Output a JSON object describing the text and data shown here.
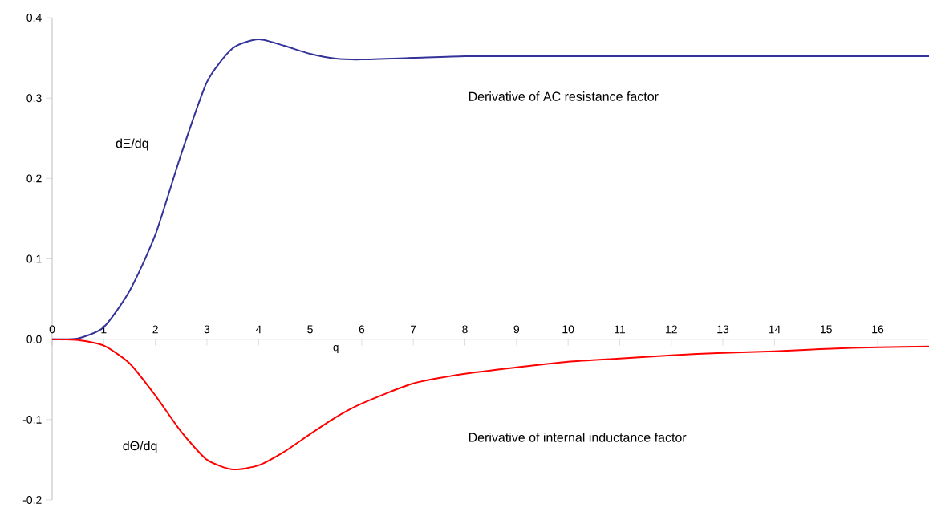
{
  "chart_data": {
    "type": "line",
    "xlabel": "q",
    "x": [
      0,
      0.5,
      1,
      1.5,
      2,
      2.5,
      3,
      3.5,
      4,
      4.5,
      5,
      5.5,
      6,
      7,
      8,
      9,
      10,
      11,
      12,
      13,
      14,
      15,
      16,
      17
    ],
    "series": [
      {
        "color": "#333399",
        "values": [
          0,
          0.001,
          0.015,
          0.06,
          0.13,
          0.23,
          0.32,
          0.362,
          0.373,
          0.365,
          0.355,
          0.349,
          0.348,
          0.35,
          0.352,
          0.352,
          0.352,
          0.352,
          0.352,
          0.352,
          0.352,
          0.352,
          0.352,
          0.352
        ]
      },
      {
        "color": "#ff0000",
        "values": [
          0,
          -0.001,
          -0.008,
          -0.03,
          -0.07,
          -0.115,
          -0.15,
          -0.162,
          -0.157,
          -0.14,
          -0.118,
          -0.097,
          -0.08,
          -0.055,
          -0.043,
          -0.035,
          -0.028,
          -0.024,
          -0.02,
          -0.017,
          -0.015,
          -0.012,
          -0.01,
          -0.009
        ]
      }
    ],
    "xlim": [
      0,
      17
    ],
    "ylim": [
      -0.2,
      0.4
    ],
    "xticks": [
      0,
      1,
      2,
      3,
      4,
      5,
      6,
      7,
      8,
      9,
      10,
      11,
      12,
      13,
      14,
      15,
      16
    ],
    "yticks": [
      -0.2,
      -0.1,
      {
        "value": 0,
        "label": "0.0"
      },
      0.1,
      0.2,
      0.3,
      0.4
    ],
    "annotations": [
      "dΞ/dq",
      "Derivative of AC resistance factor",
      "dΘ/dq",
      "Derivative of internal inductance factor"
    ]
  }
}
